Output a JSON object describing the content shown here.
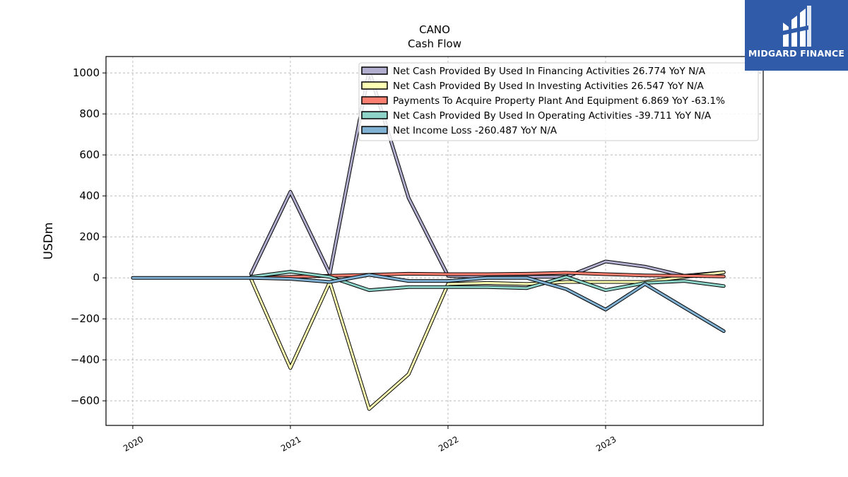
{
  "chart_data": {
    "type": "line",
    "title": "CANO",
    "subtitle": "Cash Flow",
    "xlabel": "",
    "ylabel": "USDm",
    "ylim": [
      -720,
      1080
    ],
    "xlim": [
      2019.83,
      2024.0
    ],
    "yticks": [
      1000,
      800,
      600,
      400,
      200,
      0,
      -200,
      -400,
      -600
    ],
    "ytick_labels": [
      "1000",
      "800",
      "600",
      "400",
      "200",
      "0",
      "−200",
      "−400",
      "−600"
    ],
    "xticks": [
      2020,
      2021,
      2022,
      2023
    ],
    "xtick_labels": [
      "2020",
      "2021",
      "2022",
      "2023"
    ],
    "grid": true,
    "legend_position": "top-right",
    "series": [
      {
        "name": "Net Cash Provided By Used In Financing Activities",
        "legend": "Net Cash Provided By Used In Financing Activities  26.774 YoY N/A",
        "color": "#b2aed0",
        "x": [
          2020.75,
          2021.0,
          2021.25,
          2021.5,
          2021.75,
          2022.0,
          2022.25,
          2022.5,
          2022.75,
          2023.0,
          2023.25,
          2023.5,
          2023.75
        ],
        "y": [
          20,
          420,
          20,
          1010,
          390,
          10,
          5,
          5,
          5,
          80,
          55,
          10,
          27
        ]
      },
      {
        "name": "Net Cash Provided By Used In Investing Activities",
        "legend": "Net Cash Provided By Used In Investing Activities  26.547 YoY N/A",
        "color": "#ffffb3",
        "x": [
          2020.75,
          2021.0,
          2021.25,
          2021.5,
          2021.75,
          2022.0,
          2022.25,
          2022.5,
          2022.75,
          2023.0,
          2023.25,
          2023.5,
          2023.75
        ],
        "y": [
          -5,
          -440,
          -20,
          -640,
          -470,
          -30,
          -25,
          -30,
          -20,
          -20,
          -20,
          5,
          27
        ]
      },
      {
        "name": "Payments To Acquire Property Plant And Equipment",
        "legend": "Payments To Acquire Property Plant And Equipment  6.869 YoY -63.1%",
        "color": "#fb8072",
        "x": [
          2020.75,
          2021.0,
          2021.25,
          2021.5,
          2021.75,
          2022.0,
          2022.25,
          2022.5,
          2022.75,
          2023.0,
          2023.25,
          2023.5,
          2023.75
        ],
        "y": [
          0,
          5,
          10,
          15,
          20,
          18,
          18,
          20,
          25,
          18,
          12,
          10,
          7
        ]
      },
      {
        "name": "Net Cash Provided By Used In Operating Activities",
        "legend": "Net Cash Provided By Used In Operating Activities  -39.711 YoY N/A",
        "color": "#8dd3c7",
        "x": [
          2020.75,
          2021.0,
          2021.25,
          2021.5,
          2021.75,
          2022.0,
          2022.25,
          2022.5,
          2022.75,
          2023.0,
          2023.25,
          2023.5,
          2023.75
        ],
        "y": [
          5,
          30,
          5,
          -60,
          -45,
          -45,
          -45,
          -50,
          5,
          -60,
          -25,
          -15,
          -40
        ]
      },
      {
        "name": "Net Income Loss",
        "legend": "Net Income Loss  -260.487 YoY N/A",
        "color": "#80b1d3",
        "x": [
          2020.0,
          2020.25,
          2020.5,
          2020.75,
          2021.0,
          2021.25,
          2021.5,
          2021.75,
          2022.0,
          2022.25,
          2022.5,
          2022.75,
          2023.0,
          2023.25,
          2023.5,
          2023.75
        ],
        "y": [
          0,
          0,
          0,
          0,
          -5,
          -20,
          15,
          -15,
          -15,
          0,
          0,
          -55,
          -155,
          -30,
          -145,
          -260
        ]
      }
    ]
  },
  "watermark": {
    "text": "MIDGARD FINANCE",
    "bg_color": "#2f5ba8"
  }
}
